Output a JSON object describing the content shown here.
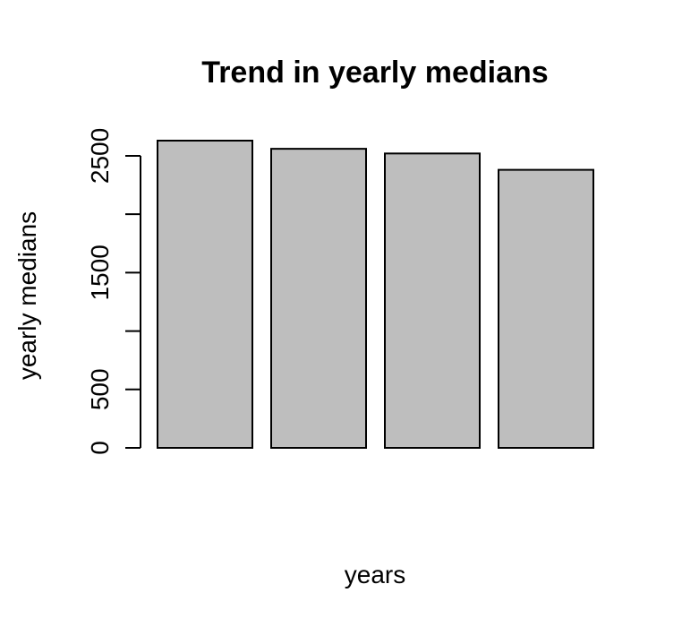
{
  "chart_data": {
    "type": "bar",
    "title": "Trend in yearly medians",
    "xlabel": "years",
    "ylabel": "yearly medians",
    "values": [
      2630,
      2560,
      2520,
      2380
    ],
    "ylim": [
      0,
      2630
    ],
    "yticks": [
      0,
      500,
      1000,
      1500,
      2000,
      2500
    ],
    "ytick_labels": [
      "0",
      "500",
      "",
      "1500",
      "",
      "2500"
    ],
    "grid": false,
    "bar_color": "#bebebe",
    "border_color": "#000000"
  }
}
